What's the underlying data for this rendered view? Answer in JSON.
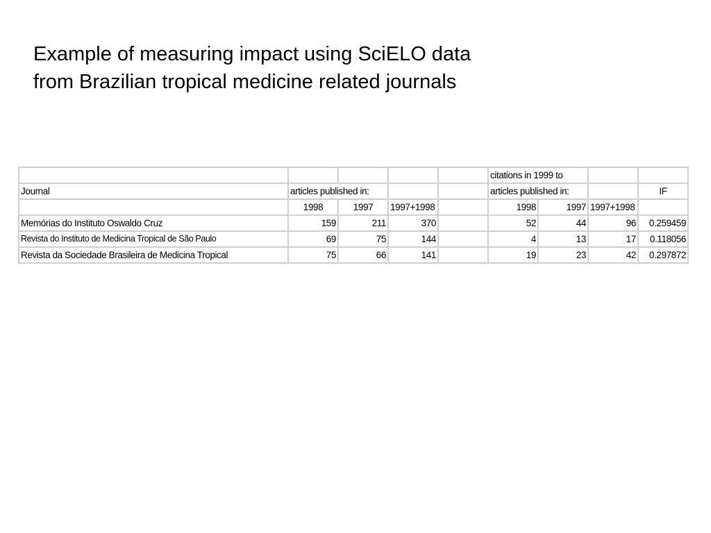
{
  "title": {
    "line1": "Example of measuring impact using SciELO data",
    "line2": "from Brazilian tropical medicine related journals"
  },
  "table": {
    "header_row1": {
      "citations": "citations in 1999 to"
    },
    "header_row2": {
      "journal": "Journal",
      "articles": "articles published in:",
      "citations_articles": "articles published in:",
      "if": "IF"
    },
    "header_row3": {
      "y1998": "1998",
      "y1997": "1997",
      "ysum": "1997+1998",
      "cy1998": "1998",
      "cy1997": "1997",
      "cysum": "1997+1998"
    },
    "rows": [
      {
        "journal": "Memórias do Instituto Oswaldo Cruz",
        "a1998": "159",
        "a1997": "211",
        "asum": "370",
        "c1998": "52",
        "c1997": "44",
        "csum": "96",
        "if": "0.259459"
      },
      {
        "journal": "Revista do Instituto de Medicina Tropical de São Paulo",
        "a1998": "69",
        "a1997": "75",
        "asum": "144",
        "c1998": "4",
        "c1997": "13",
        "csum": "17",
        "if": "0.118056"
      },
      {
        "journal": "Revista da Sociedade Brasileira de Medicina Tropical",
        "a1998": "75",
        "a1997": "66",
        "asum": "141",
        "c1998": "19",
        "c1997": "23",
        "csum": "42",
        "if": "0.297872"
      }
    ]
  }
}
